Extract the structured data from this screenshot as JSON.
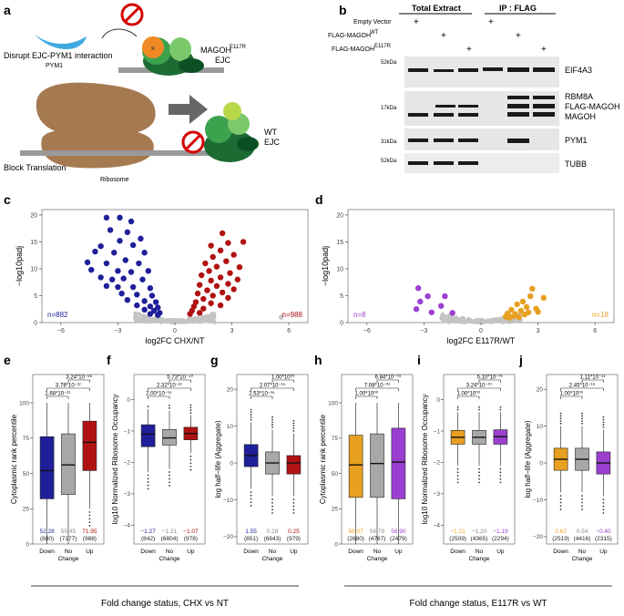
{
  "panels": {
    "a": "a",
    "b": "b",
    "c": "c",
    "d": "d",
    "e": "e",
    "f": "f",
    "g": "g",
    "h": "h",
    "i": "i",
    "j": "j"
  },
  "colors": {
    "down": "#1f1f9a",
    "nochange": "#a8a8a8",
    "up": "#b01212",
    "e117r_down": "#e8a020",
    "e117r_up": "#9b3fd0",
    "stop": "#d40000",
    "protein": "#2e8b3e"
  },
  "panel_a": {
    "label_disrupt": "Disrupt EJC-PYM1 interaction",
    "label_block": "Block Translation",
    "pym1": "PYM1",
    "magoh_ejc_line1": "MAGOH",
    "magoh_ejc_sup": "E117R",
    "magoh_ejc_line2": "EJC",
    "wt_line1": "WT",
    "wt_line2": "EJC",
    "ribosome": "Ribosome",
    "icons": [
      "stop-icon",
      "arrow-right-icon",
      "ribosome-icon",
      "ejc-complex-icon"
    ]
  },
  "panel_b": {
    "header_total": "Total Extract",
    "header_ip": "IP : FLAG",
    "row_labels": [
      "Empty Vector",
      "FLAG-MAGOH",
      "FLAG-MAGOH"
    ],
    "row_sups": [
      "",
      "WT",
      "E117R"
    ],
    "plus_sign": "+",
    "markers": [
      "52kDa",
      "17kDa",
      "31kDa",
      "52kDa"
    ],
    "bands": [
      "EIF4A3",
      "RBM8A",
      "FLAG-MAGOH",
      "MAGOH",
      "PYM1",
      "TUBB"
    ]
  },
  "chart_data": [
    {
      "panel": "c",
      "type": "scatter",
      "xlabel": "log2FC CHX/NT",
      "ylabel": "−log10padj",
      "xlim": [
        -7,
        7
      ],
      "ylim": [
        0,
        21
      ],
      "xticks": [
        "−6",
        "−3",
        "0",
        "3",
        "6"
      ],
      "yticks": [
        "0",
        "5",
        "10",
        "15",
        "20"
      ],
      "annotations": {
        "down_n": "n=882",
        "up_n": "n=988"
      },
      "series": [
        {
          "name": "Down",
          "color": "#1f1f9a",
          "points": [
            [
              -3.6,
              19.5
            ],
            [
              -2.9,
              19.5
            ],
            [
              -2.3,
              18.8
            ],
            [
              -3.4,
              17.2
            ],
            [
              -2.5,
              16.8
            ],
            [
              -1.8,
              15.6
            ],
            [
              -2.9,
              15.2
            ],
            [
              -3.9,
              14.2
            ],
            [
              -2.2,
              14.4
            ],
            [
              -4.2,
              13.2
            ],
            [
              -3.2,
              13.0
            ],
            [
              -1.6,
              13.0
            ],
            [
              -4.6,
              11.2
            ],
            [
              -2.6,
              11.6
            ],
            [
              -3.6,
              11.0
            ],
            [
              -1.9,
              11.0
            ],
            [
              -4.4,
              9.8
            ],
            [
              -3.0,
              9.6
            ],
            [
              -2.3,
              9.4
            ],
            [
              -1.4,
              9.6
            ],
            [
              -3.9,
              8.4
            ],
            [
              -3.3,
              8.0
            ],
            [
              -2.7,
              8.2
            ],
            [
              -1.7,
              8.0
            ],
            [
              -3.6,
              6.8
            ],
            [
              -3.0,
              6.6
            ],
            [
              -2.2,
              6.6
            ],
            [
              -1.3,
              6.4
            ],
            [
              -2.8,
              5.4
            ],
            [
              -2.0,
              5.2
            ],
            [
              -1.2,
              5.0
            ],
            [
              -2.5,
              4.2
            ],
            [
              -1.6,
              4.0
            ],
            [
              -1.0,
              3.8
            ],
            [
              -2.0,
              3.2
            ],
            [
              -1.3,
              3.0
            ],
            [
              -0.9,
              2.8
            ],
            [
              -1.6,
              2.4
            ],
            [
              -1.1,
              2.2
            ],
            [
              -0.8,
              1.8
            ],
            [
              -1.3,
              1.6
            ],
            [
              -0.9,
              1.4
            ]
          ]
        },
        {
          "name": "Up",
          "color": "#b01212",
          "points": [
            [
              2.5,
              16.6
            ],
            [
              3.6,
              15.0
            ],
            [
              2.8,
              14.8
            ],
            [
              1.9,
              14.3
            ],
            [
              2.4,
              13.4
            ],
            [
              3.1,
              12.6
            ],
            [
              2.0,
              12.2
            ],
            [
              2.7,
              11.4
            ],
            [
              1.6,
              11.0
            ],
            [
              3.4,
              10.3
            ],
            [
              2.2,
              10.4
            ],
            [
              1.8,
              9.6
            ],
            [
              2.9,
              9.2
            ],
            [
              1.4,
              8.8
            ],
            [
              2.4,
              8.4
            ],
            [
              3.3,
              8.0
            ],
            [
              1.9,
              7.8
            ],
            [
              2.8,
              7.2
            ],
            [
              1.3,
              7.0
            ],
            [
              2.2,
              6.8
            ],
            [
              3.1,
              6.2
            ],
            [
              1.7,
              6.0
            ],
            [
              2.5,
              5.6
            ],
            [
              1.2,
              5.4
            ],
            [
              2.0,
              5.0
            ],
            [
              2.8,
              4.6
            ],
            [
              1.5,
              4.4
            ],
            [
              1.1,
              3.8
            ],
            [
              1.9,
              3.6
            ],
            [
              2.4,
              3.2
            ],
            [
              1.0,
              3.0
            ],
            [
              1.5,
              2.6
            ],
            [
              0.9,
              2.2
            ],
            [
              1.3,
              1.8
            ],
            [
              0.8,
              1.6
            ]
          ]
        }
      ]
    },
    {
      "panel": "d",
      "type": "scatter",
      "xlabel": "log2FC E117R/WT",
      "ylabel": "−log10padj",
      "xlim": [
        -7,
        7
      ],
      "ylim": [
        0,
        21
      ],
      "xticks": [
        "−6",
        "−3",
        "0",
        "3",
        "6"
      ],
      "yticks": [
        "0",
        "5",
        "10",
        "15",
        "20"
      ],
      "annotations": {
        "down_n": "n=8",
        "up_n": "n=18"
      },
      "series": [
        {
          "name": "Down",
          "color": "#9b3fd0",
          "points": [
            [
              -3.3,
              6.4
            ],
            [
              -2.8,
              4.9
            ],
            [
              -1.9,
              4.9
            ],
            [
              -3.2,
              3.9
            ],
            [
              -2.1,
              3.1
            ],
            [
              -3.4,
              2.5
            ],
            [
              -2.6,
              1.9
            ],
            [
              -1.5,
              1.8
            ]
          ]
        },
        {
          "name": "Up",
          "color": "#e8a020",
          "points": [
            [
              2.7,
              6.3
            ],
            [
              2.6,
              4.9
            ],
            [
              3.3,
              4.6
            ],
            [
              2.2,
              3.9
            ],
            [
              1.9,
              3.4
            ],
            [
              2.4,
              2.9
            ],
            [
              2.1,
              2.2
            ],
            [
              1.6,
              2.4
            ],
            [
              2.9,
              2.6
            ],
            [
              1.8,
              1.6
            ],
            [
              2.3,
              1.5
            ],
            [
              1.4,
              1.7
            ],
            [
              1.7,
              1.2
            ],
            [
              2.0,
              1.0
            ],
            [
              1.5,
              0.9
            ],
            [
              2.5,
              1.9
            ],
            [
              3.0,
              2.0
            ],
            [
              1.3,
              1.1
            ]
          ]
        }
      ]
    },
    {
      "panel": "e",
      "type": "box",
      "ylabel": "Cytoplasmic rank percentile",
      "ylim": [
        0,
        120
      ],
      "yticks": [
        "0",
        "25",
        "50",
        "75",
        "100"
      ],
      "categories": [
        "Down",
        "No\nChange",
        "Up"
      ],
      "cat_labels": [
        "Down",
        "No",
        "Up"
      ],
      "cat_sub": [
        "",
        "Change",
        ""
      ],
      "colors": [
        "#1f1f9a",
        "#a8a8a8",
        "#b01212"
      ],
      "boxes": [
        {
          "min": 0,
          "q1": 32,
          "median": 52,
          "q3": 76,
          "max": 100
        },
        {
          "min": 0,
          "q1": 35,
          "median": 56,
          "q3": 78,
          "max": 100
        },
        {
          "min": 25,
          "q1": 52,
          "median": 72,
          "q3": 87,
          "max": 100
        }
      ],
      "means": [
        "52.28",
        "55.45",
        "71.95"
      ],
      "ns": [
        "(880)",
        "(7177)",
        "(988)"
      ],
      "pvalues": [
        "1.68*10⁻²¹",
        "3.78*10⁻³⁷",
        "3.24*10⁻⁵⁶"
      ]
    },
    {
      "panel": "f",
      "type": "box",
      "ylabel": "log10 Normalized Ribosome Occupancy",
      "ylim": [
        -4.6,
        0.8
      ],
      "yticks": [
        "−4",
        "−3",
        "−2",
        "−1",
        "0"
      ],
      "categories": [
        "Down",
        "No\nChange",
        "Up"
      ],
      "cat_labels": [
        "Down",
        "No",
        "Up"
      ],
      "cat_sub": [
        "",
        "Change",
        ""
      ],
      "colors": [
        "#1f1f9a",
        "#a8a8a8",
        "#b01212"
      ],
      "boxes": [
        {
          "min": -2.3,
          "q1": -1.5,
          "median": -1.1,
          "q3": -0.8,
          "max": -0.3
        },
        {
          "min": -2.2,
          "q1": -1.45,
          "median": -1.22,
          "q3": -0.95,
          "max": -0.35
        },
        {
          "min": -1.7,
          "q1": -1.28,
          "median": -1.08,
          "q3": -0.88,
          "max": -0.5
        }
      ],
      "means": [
        "−1.27",
        "−1.21",
        "−1.07"
      ],
      "ns": [
        "(842)",
        "(6804)",
        "(978)"
      ],
      "pvalues": [
        "2.00*10⁻¹⁵",
        "2.32*10⁻²⁷",
        "5.73*10⁻⁴⁰"
      ]
    },
    {
      "panel": "g",
      "type": "box",
      "ylabel": "log half−life (Aggregate)",
      "ylim": [
        -22,
        24
      ],
      "yticks": [
        "−20",
        "−10",
        "0",
        "10",
        "20"
      ],
      "categories": [
        "Down",
        "No\nChange",
        "Up"
      ],
      "cat_labels": [
        "Down",
        "No",
        "Up"
      ],
      "cat_sub": [
        "",
        "Change",
        ""
      ],
      "colors": [
        "#1f1f9a",
        "#a8a8a8",
        "#b01212"
      ],
      "boxes": [
        {
          "min": -7,
          "q1": -1,
          "median": 2,
          "q3": 5,
          "max": 11
        },
        {
          "min": -9,
          "q1": -3,
          "median": 0,
          "q3": 3,
          "max": 9
        },
        {
          "min": -9,
          "q1": -3,
          "median": 0,
          "q3": 2,
          "max": 8
        }
      ],
      "means": [
        "1.55",
        "0.28",
        "0.25"
      ],
      "ns": [
        "(851)",
        "(6843)",
        "(979)"
      ],
      "pvalues": [
        "2.53*10⁻¹⁵",
        "2.07*10⁻¹⁵",
        "1.00*10⁰⁰"
      ]
    },
    {
      "panel": "h",
      "type": "box",
      "ylabel": "Cytoplasmic rank percentile",
      "ylim": [
        0,
        120
      ],
      "yticks": [
        "0",
        "25",
        "50",
        "75",
        "100"
      ],
      "categories": [
        "Down",
        "No\nChange",
        "Up"
      ],
      "cat_labels": [
        "Down",
        "No",
        "Up"
      ],
      "cat_sub": [
        "",
        "Change",
        ""
      ],
      "colors": [
        "#e8a020",
        "#a8a8a8",
        "#9b3fd0"
      ],
      "boxes": [
        {
          "min": 0,
          "q1": 33,
          "median": 56,
          "q3": 77,
          "max": 100
        },
        {
          "min": 0,
          "q1": 33,
          "median": 57,
          "q3": 78,
          "max": 100
        },
        {
          "min": 0,
          "q1": 32,
          "median": 58,
          "q3": 82,
          "max": 100
        }
      ],
      "means": [
        "56.07",
        "56.79",
        "58.90"
      ],
      "ns": [
        "(2680)",
        "(4767)",
        "(2479)"
      ],
      "pvalues": [
        "1.00*10⁰⁰",
        "7.08*10⁻⁰¹",
        "6.84*10⁻⁰³"
      ]
    },
    {
      "panel": "i",
      "type": "box",
      "ylabel": "log10 Normalized Ribosome Occupancy",
      "ylim": [
        -4.6,
        0.8
      ],
      "yticks": [
        "−4",
        "−3",
        "−2",
        "−1",
        "0"
      ],
      "categories": [
        "Down",
        "No\nChange",
        "Up"
      ],
      "cat_labels": [
        "Down",
        "No",
        "Up"
      ],
      "cat_sub": [
        "",
        "Change",
        ""
      ],
      "colors": [
        "#e8a020",
        "#a8a8a8",
        "#9b3fd0"
      ],
      "boxes": [
        {
          "min": -2.1,
          "q1": -1.42,
          "median": -1.2,
          "q3": -0.98,
          "max": -0.4
        },
        {
          "min": -2.1,
          "q1": -1.42,
          "median": -1.2,
          "q3": -0.98,
          "max": -0.4
        },
        {
          "min": -2.1,
          "q1": -1.42,
          "median": -1.18,
          "q3": -0.96,
          "max": -0.4
        }
      ],
      "means": [
        "−1.21",
        "−1.20",
        "−1.19"
      ],
      "ns": [
        "(2509)",
        "(4365)",
        "(2294)"
      ],
      "pvalues": [
        "1.00*10⁰⁰",
        "3.24*10⁻⁰⁷",
        "5.10*10⁻⁰¹"
      ]
    },
    {
      "panel": "j",
      "type": "box",
      "ylabel": "log half−life (Aggregate)",
      "ylim": [
        -22,
        24
      ],
      "yticks": [
        "−20",
        "−10",
        "0",
        "10",
        "20"
      ],
      "categories": [
        "Down",
        "No\nChange",
        "Up"
      ],
      "cat_labels": [
        "Down",
        "No",
        "Up"
      ],
      "cat_sub": [
        "",
        "Change",
        ""
      ],
      "colors": [
        "#e8a020",
        "#a8a8a8",
        "#9b3fd0"
      ],
      "boxes": [
        {
          "min": -8,
          "q1": -2,
          "median": 1,
          "q3": 4,
          "max": 10
        },
        {
          "min": -8,
          "q1": -2,
          "median": 1,
          "q3": 4,
          "max": 10
        },
        {
          "min": -9,
          "q1": -3,
          "median": 0,
          "q3": 3,
          "max": 9
        }
      ],
      "means": [
        "0.62",
        "0.54",
        "−0.40"
      ],
      "ns": [
        "(2519)",
        "(4416)",
        "(2315)"
      ],
      "pvalues": [
        "1.00*10⁰⁰",
        "2.45*10⁻¹⁹",
        "1.11*10⁻¹⁴"
      ]
    }
  ],
  "footer": {
    "left": "Fold change status, CHX vs NT",
    "right": "Fold change status, E117R vs WT"
  }
}
